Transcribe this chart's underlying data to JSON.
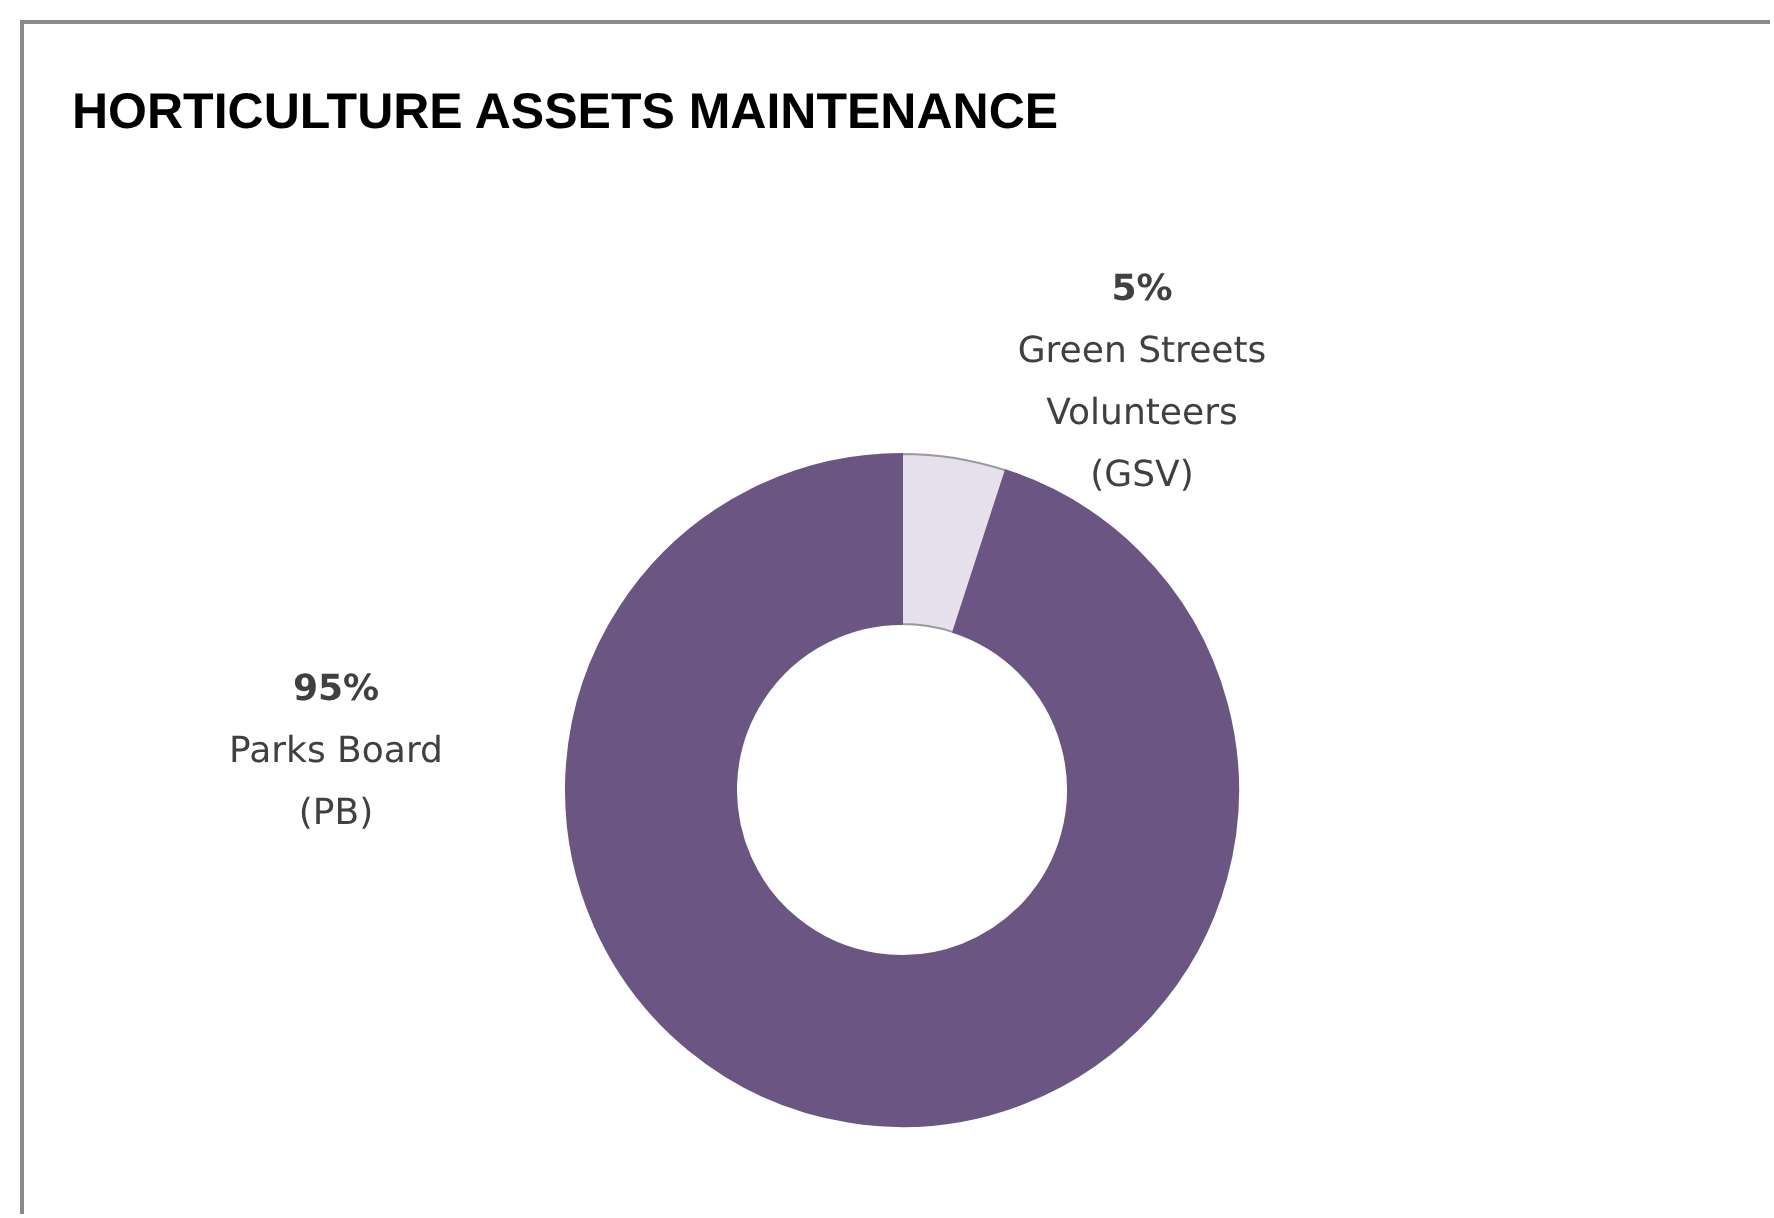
{
  "chart_data": {
    "type": "donut",
    "title": "HORTICULTURE ASSETS MAINTENANCE",
    "categories": [
      "Green Streets Volunteers (GSV)",
      "Parks Board (PB)"
    ],
    "values": [
      5,
      95
    ],
    "colors": [
      "#e6e0ec",
      "#6b5683"
    ],
    "value_labels": [
      "5%",
      "95%"
    ]
  }
}
